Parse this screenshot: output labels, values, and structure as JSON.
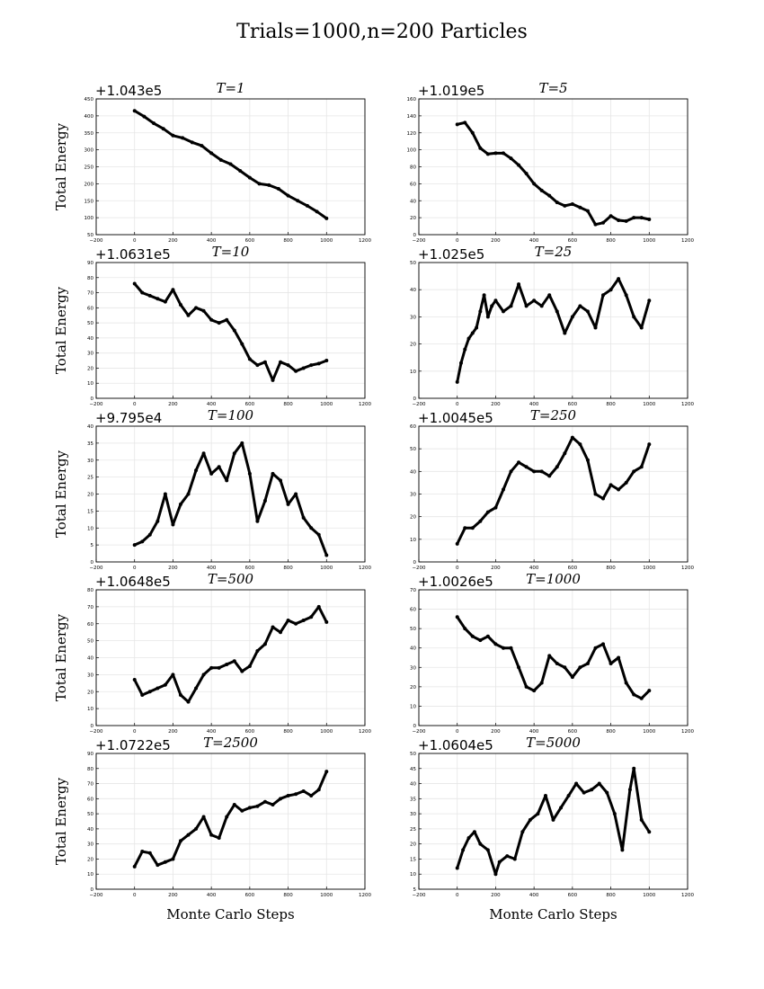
{
  "figure": {
    "title": "Trials=1000,n=200 Particles"
  },
  "chart_data": [
    {
      "type": "scatter",
      "title": "T=1",
      "offset_label": "+1.043e5",
      "ylabel": "Total Energy",
      "xlabel": "",
      "xlim": [
        -200,
        1200
      ],
      "ylim": [
        50,
        450
      ],
      "xticks": [
        "−200",
        "0",
        "200",
        "400",
        "600",
        "800",
        "1000",
        "1200"
      ],
      "yticks": [
        "50",
        "100",
        "150",
        "200",
        "250",
        "300",
        "350",
        "400",
        "450"
      ],
      "grid": true,
      "x": [
        0,
        50,
        100,
        150,
        200,
        250,
        300,
        350,
        400,
        450,
        500,
        550,
        600,
        650,
        700,
        750,
        800,
        850,
        900,
        950,
        1000
      ],
      "y": [
        415,
        398,
        378,
        362,
        342,
        335,
        322,
        312,
        290,
        270,
        258,
        238,
        218,
        200,
        196,
        185,
        165,
        150,
        135,
        118,
        98
      ]
    },
    {
      "type": "scatter",
      "title": "T=5",
      "offset_label": "+1.019e5",
      "ylabel": "",
      "xlabel": "",
      "xlim": [
        -200,
        1200
      ],
      "ylim": [
        0,
        160
      ],
      "xticks": [
        "−200",
        "0",
        "200",
        "400",
        "600",
        "800",
        "1000",
        "1200"
      ],
      "yticks": [
        "0",
        "20",
        "40",
        "60",
        "80",
        "100",
        "120",
        "140",
        "160"
      ],
      "grid": true,
      "x": [
        0,
        40,
        80,
        120,
        160,
        200,
        240,
        280,
        320,
        360,
        400,
        440,
        480,
        520,
        560,
        600,
        640,
        680,
        720,
        760,
        800,
        840,
        880,
        920,
        960,
        1000
      ],
      "y": [
        130,
        132,
        120,
        102,
        95,
        96,
        96,
        90,
        82,
        72,
        60,
        52,
        46,
        38,
        34,
        36,
        32,
        28,
        12,
        14,
        22,
        17,
        16,
        20,
        20,
        18
      ]
    },
    {
      "type": "scatter",
      "title": "T=10",
      "offset_label": "+1.0631e5",
      "ylabel": "Total Energy",
      "xlabel": "",
      "xlim": [
        -200,
        1200
      ],
      "ylim": [
        0,
        90
      ],
      "xticks": [
        "−200",
        "0",
        "200",
        "400",
        "600",
        "800",
        "1000",
        "1200"
      ],
      "yticks": [
        "0",
        "10",
        "20",
        "30",
        "40",
        "50",
        "60",
        "70",
        "80",
        "90"
      ],
      "grid": true,
      "x": [
        0,
        40,
        80,
        120,
        160,
        200,
        240,
        280,
        320,
        360,
        400,
        440,
        480,
        520,
        560,
        600,
        640,
        680,
        720,
        760,
        800,
        840,
        880,
        920,
        960,
        1000
      ],
      "y": [
        76,
        70,
        68,
        66,
        64,
        72,
        62,
        55,
        60,
        58,
        52,
        50,
        52,
        45,
        36,
        26,
        22,
        24,
        12,
        24,
        22,
        18,
        20,
        22,
        23,
        25
      ]
    },
    {
      "type": "scatter",
      "title": "T=25",
      "offset_label": "+1.025e5",
      "ylabel": "",
      "xlabel": "",
      "xlim": [
        -200,
        1200
      ],
      "ylim": [
        0,
        50
      ],
      "xticks": [
        "−200",
        "0",
        "200",
        "400",
        "600",
        "800",
        "1000",
        "1200"
      ],
      "yticks": [
        "0",
        "10",
        "20",
        "30",
        "40",
        "50"
      ],
      "grid": true,
      "x": [
        0,
        20,
        40,
        60,
        80,
        100,
        120,
        140,
        160,
        180,
        200,
        240,
        280,
        320,
        360,
        400,
        440,
        480,
        520,
        560,
        600,
        640,
        680,
        720,
        760,
        800,
        840,
        880,
        920,
        960,
        1000
      ],
      "y": [
        6,
        13,
        18,
        22,
        24,
        26,
        32,
        38,
        30,
        34,
        36,
        32,
        34,
        42,
        34,
        36,
        34,
        38,
        32,
        24,
        30,
        34,
        32,
        26,
        38,
        40,
        44,
        38,
        30,
        26,
        36
      ]
    },
    {
      "type": "scatter",
      "title": "T=100",
      "offset_label": "+9.795e4",
      "ylabel": "Total Energy",
      "xlabel": "",
      "xlim": [
        -200,
        1200
      ],
      "ylim": [
        0,
        40
      ],
      "xticks": [
        "−200",
        "0",
        "200",
        "400",
        "600",
        "800",
        "1000",
        "1200"
      ],
      "yticks": [
        "0",
        "5",
        "10",
        "15",
        "20",
        "25",
        "30",
        "35",
        "40"
      ],
      "grid": true,
      "x": [
        0,
        40,
        80,
        120,
        160,
        200,
        240,
        280,
        320,
        360,
        400,
        440,
        480,
        520,
        560,
        600,
        640,
        680,
        720,
        760,
        800,
        840,
        880,
        920,
        960,
        1000
      ],
      "y": [
        5,
        6,
        8,
        12,
        20,
        11,
        17,
        20,
        27,
        32,
        26,
        28,
        24,
        32,
        35,
        26,
        12,
        18,
        26,
        24,
        17,
        20,
        13,
        10,
        8,
        2
      ]
    },
    {
      "type": "scatter",
      "title": "T=250",
      "offset_label": "+1.0045e5",
      "ylabel": "",
      "xlabel": "",
      "xlim": [
        -200,
        1200
      ],
      "ylim": [
        0,
        60
      ],
      "xticks": [
        "−200",
        "0",
        "200",
        "400",
        "600",
        "800",
        "1000",
        "1200"
      ],
      "yticks": [
        "0",
        "10",
        "20",
        "30",
        "40",
        "50",
        "60"
      ],
      "grid": true,
      "x": [
        0,
        40,
        80,
        120,
        160,
        200,
        240,
        280,
        320,
        360,
        400,
        440,
        480,
        520,
        560,
        600,
        640,
        680,
        720,
        760,
        800,
        840,
        880,
        920,
        960,
        1000
      ],
      "y": [
        8,
        15,
        15,
        18,
        22,
        24,
        32,
        40,
        44,
        42,
        40,
        40,
        38,
        42,
        48,
        55,
        52,
        45,
        30,
        28,
        34,
        32,
        35,
        40,
        42,
        52
      ]
    },
    {
      "type": "scatter",
      "title": "T=500",
      "offset_label": "+1.0648e5",
      "ylabel": "Total Energy",
      "xlabel": "",
      "xlim": [
        -200,
        1200
      ],
      "ylim": [
        0,
        80
      ],
      "xticks": [
        "−200",
        "0",
        "200",
        "400",
        "600",
        "800",
        "1000",
        "1200"
      ],
      "yticks": [
        "0",
        "10",
        "20",
        "30",
        "40",
        "50",
        "60",
        "70",
        "80"
      ],
      "grid": true,
      "x": [
        0,
        40,
        80,
        120,
        160,
        200,
        240,
        280,
        320,
        360,
        400,
        440,
        480,
        520,
        560,
        600,
        640,
        680,
        720,
        760,
        800,
        840,
        880,
        920,
        960,
        1000
      ],
      "y": [
        27,
        18,
        20,
        22,
        24,
        30,
        18,
        14,
        22,
        30,
        34,
        34,
        36,
        38,
        32,
        35,
        44,
        48,
        58,
        55,
        62,
        60,
        62,
        64,
        70,
        61
      ]
    },
    {
      "type": "scatter",
      "title": "T=1000",
      "offset_label": "+1.0026e5",
      "ylabel": "",
      "xlabel": "",
      "xlim": [
        -200,
        1200
      ],
      "ylim": [
        0,
        70
      ],
      "xticks": [
        "−200",
        "0",
        "200",
        "400",
        "600",
        "800",
        "1000",
        "1200"
      ],
      "yticks": [
        "0",
        "10",
        "20",
        "30",
        "40",
        "50",
        "60",
        "70"
      ],
      "grid": true,
      "x": [
        0,
        40,
        80,
        120,
        160,
        200,
        240,
        280,
        320,
        360,
        400,
        440,
        480,
        520,
        560,
        600,
        640,
        680,
        720,
        760,
        800,
        840,
        880,
        920,
        960,
        1000
      ],
      "y": [
        56,
        50,
        46,
        44,
        46,
        42,
        40,
        40,
        30,
        20,
        18,
        22,
        36,
        32,
        30,
        25,
        30,
        32,
        40,
        42,
        32,
        35,
        22,
        16,
        14,
        18
      ]
    },
    {
      "type": "scatter",
      "title": "T=2500",
      "offset_label": "+1.0722e5",
      "ylabel": "Total Energy",
      "xlabel": "Monte Carlo Steps",
      "xlim": [
        -200,
        1200
      ],
      "ylim": [
        0,
        90
      ],
      "xticks": [
        "−200",
        "0",
        "200",
        "400",
        "600",
        "800",
        "1000",
        "1200"
      ],
      "yticks": [
        "0",
        "10",
        "20",
        "30",
        "40",
        "50",
        "60",
        "70",
        "80",
        "90"
      ],
      "grid": true,
      "x": [
        0,
        40,
        80,
        120,
        160,
        200,
        240,
        280,
        320,
        360,
        400,
        440,
        480,
        520,
        560,
        600,
        640,
        680,
        720,
        760,
        800,
        840,
        880,
        920,
        960,
        1000
      ],
      "y": [
        15,
        25,
        24,
        16,
        18,
        20,
        32,
        36,
        40,
        48,
        36,
        34,
        48,
        56,
        52,
        54,
        55,
        58,
        56,
        60,
        62,
        63,
        65,
        62,
        66,
        78
      ]
    },
    {
      "type": "scatter",
      "title": "T=5000",
      "offset_label": "+1.0604e5",
      "ylabel": "",
      "xlabel": "Monte Carlo Steps",
      "xlim": [
        -200,
        1200
      ],
      "ylim": [
        5,
        50
      ],
      "xticks": [
        "−200",
        "0",
        "200",
        "400",
        "600",
        "800",
        "1000",
        "1200"
      ],
      "yticks": [
        "5",
        "10",
        "15",
        "20",
        "25",
        "30",
        "35",
        "40",
        "45",
        "50"
      ],
      "grid": true,
      "x": [
        0,
        30,
        60,
        90,
        120,
        160,
        200,
        220,
        260,
        300,
        340,
        380,
        420,
        460,
        500,
        540,
        580,
        620,
        660,
        700,
        740,
        780,
        820,
        860,
        900,
        920,
        960,
        1000
      ],
      "y": [
        12,
        18,
        22,
        24,
        20,
        18,
        10,
        14,
        16,
        15,
        24,
        28,
        30,
        36,
        28,
        32,
        36,
        40,
        37,
        38,
        40,
        37,
        30,
        18,
        38,
        45,
        28,
        24
      ]
    }
  ]
}
